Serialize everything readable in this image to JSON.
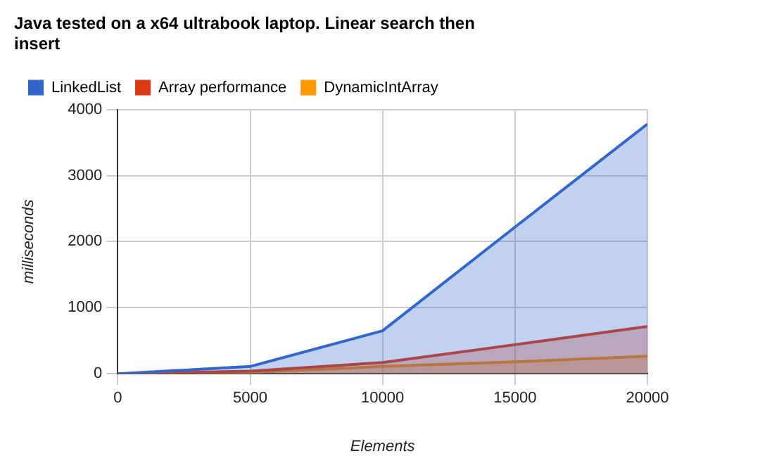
{
  "chart_data": {
    "type": "area",
    "title": "Java tested on a x64 ultrabook laptop. Linear search then insert",
    "xlabel": "Elements",
    "ylabel": "milliseconds",
    "x": [
      0,
      5000,
      10000,
      15000,
      20000
    ],
    "series": [
      {
        "name": "LinkedList",
        "color": "#3366cc",
        "values": [
          0,
          110,
          650,
          2220,
          3780
        ]
      },
      {
        "name": "Array performance",
        "color": "#dc3912",
        "values": [
          0,
          40,
          170,
          440,
          715
        ]
      },
      {
        "name": "DynamicIntArray",
        "color": "#ff9900",
        "values": [
          0,
          20,
          110,
          180,
          265
        ]
      }
    ],
    "xlim": [
      0,
      20000
    ],
    "xticks": [
      0,
      5000,
      10000,
      15000,
      20000
    ],
    "ylim": [
      0,
      4000
    ],
    "yticks": [
      0,
      1000,
      2000,
      3000,
      4000
    ],
    "grid": true,
    "legend": "top"
  }
}
